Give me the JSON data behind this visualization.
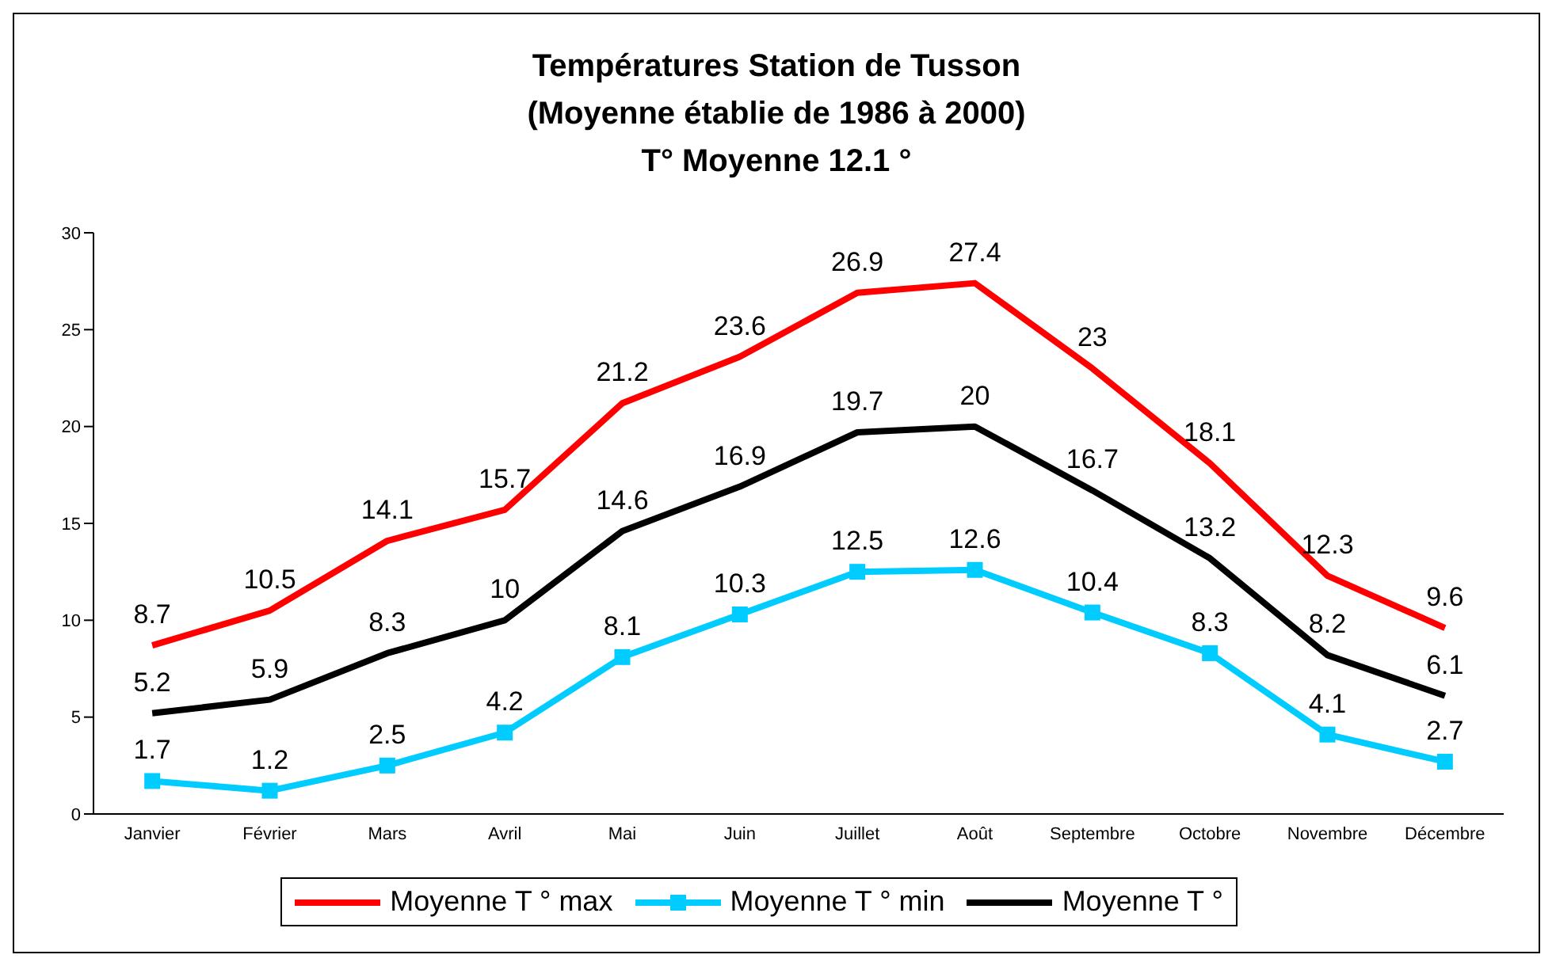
{
  "chart_data": {
    "type": "line",
    "title": "Températures Station de Tusson\n(Moyenne établie de 1986 à 2000)\nT° Moyenne 12.1 °",
    "categories": [
      "Janvier",
      "Février",
      "Mars",
      "Avril",
      "Mai",
      "Juin",
      "Juillet",
      "Août",
      "Septembre",
      "Octobre",
      "Novembre",
      "Décembre"
    ],
    "series": [
      {
        "name": "Moyenne T ° max",
        "color": "#ff0000",
        "values": [
          8.7,
          10.5,
          14.1,
          15.7,
          21.2,
          23.6,
          26.9,
          27.4,
          23,
          18.1,
          12.3,
          9.6
        ]
      },
      {
        "name": "Moyenne T ° min",
        "color": "#00ccff",
        "marker": "square",
        "values": [
          1.7,
          1.2,
          2.5,
          4.2,
          8.1,
          10.3,
          12.5,
          12.6,
          10.4,
          8.3,
          4.1,
          2.7
        ]
      },
      {
        "name": "Moyenne T °",
        "color": "#000000",
        "values": [
          5.2,
          5.9,
          8.3,
          10,
          14.6,
          16.9,
          19.7,
          20,
          16.7,
          13.2,
          8.2,
          6.1
        ]
      }
    ],
    "ylim": [
      0,
      30
    ],
    "yticks": [
      0,
      5,
      10,
      15,
      20,
      25,
      30
    ],
    "grid": false,
    "legend": "bottom",
    "data_labels": true
  }
}
